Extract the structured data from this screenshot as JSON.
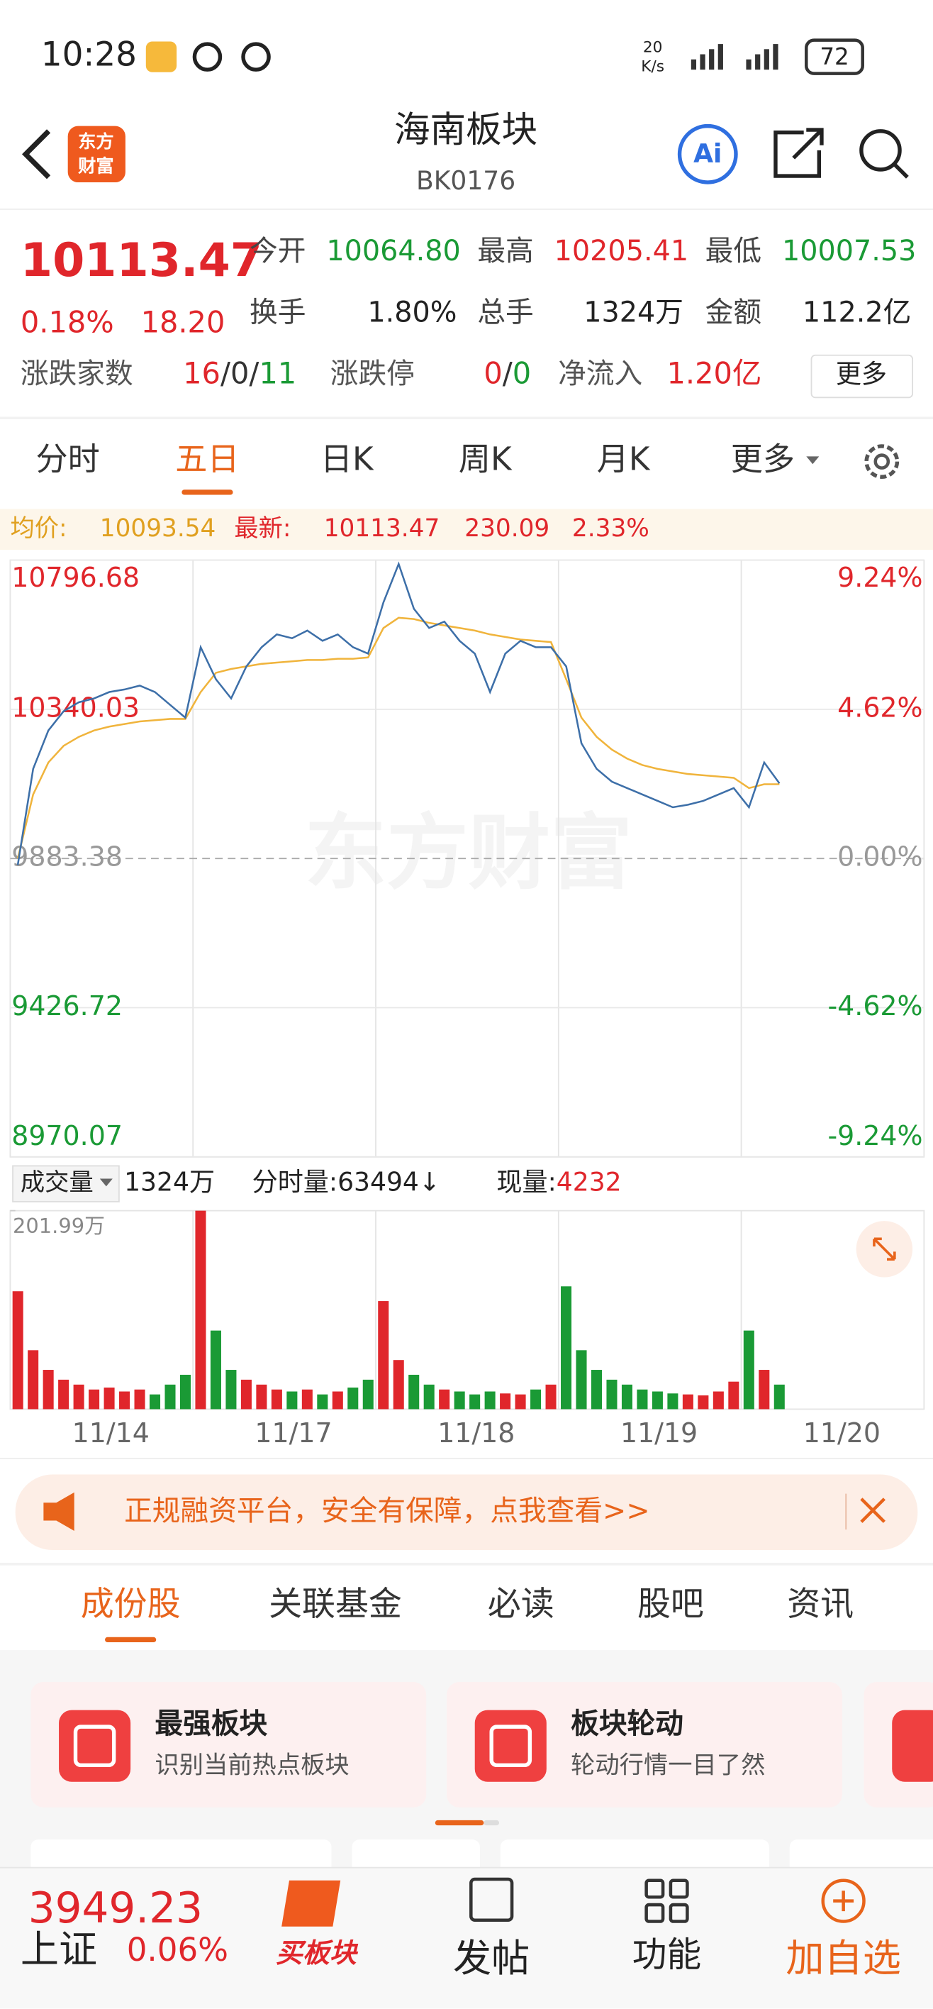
{
  "status": {
    "time": "10:28",
    "speed_value": "20",
    "speed_unit": "K/s",
    "battery": "72"
  },
  "header": {
    "logo_top": "东方",
    "logo_bottom": "财富",
    "title": "海南板块",
    "code": "BK0176",
    "ai": "Ai"
  },
  "quote": {
    "price": "10113.47",
    "pct": "0.18%",
    "change": "18.20",
    "up_color": "#e0262b",
    "down_color": "#1a9a35",
    "fields": [
      {
        "label": "今开",
        "value": "10064.80",
        "color": "#1a9a35"
      },
      {
        "label": "最高",
        "value": "10205.41",
        "color": "#e0262b"
      },
      {
        "label": "最低",
        "value": "10007.53",
        "color": "#1a9a35"
      },
      {
        "label": "换手",
        "value": "1.80%",
        "color": "#222222"
      },
      {
        "label": "总手",
        "value": "1324万",
        "color": "#222222"
      },
      {
        "label": "金额",
        "value": "112.2亿",
        "color": "#222222"
      }
    ],
    "breadth": {
      "label": "涨跌家数",
      "up": "16",
      "flat": "0",
      "down": "11",
      "sep": "/"
    },
    "limit": {
      "label": "涨跌停",
      "up": "0",
      "down": "0"
    },
    "netflow": {
      "label": "净流入",
      "value": "1.20亿"
    },
    "more": "更多"
  },
  "tabs": {
    "items": [
      "分时",
      "五日",
      "日K",
      "周K",
      "月K",
      "更多"
    ],
    "active": 1
  },
  "info": {
    "avg_label": "均价:",
    "avg": "10093.54",
    "last_label": "最新:",
    "last": "10113.47",
    "chg": "230.09",
    "chg_pct": "2.33%"
  },
  "watermark": "东方财富",
  "chart_data": {
    "type": "line",
    "ylim": [
      8970.07,
      10796.68
    ],
    "yticks": [
      10796.68,
      10340.03,
      9883.38,
      9426.72,
      8970.07
    ],
    "y2lim": [
      -9.24,
      9.24
    ],
    "y2ticks": [
      {
        "value": 9.24,
        "label": "9.24%"
      },
      {
        "value": 4.62,
        "label": "4.62%"
      },
      {
        "value": 0,
        "label": "0.00%"
      },
      {
        "value": -4.62,
        "label": "-4.62%"
      },
      {
        "value": -9.24,
        "label": "-9.24%"
      }
    ],
    "price_color": "#3d6fa8",
    "avg_color": "#f0b43c",
    "days": [
      {
        "label": "11/14",
        "price": [
          9863.7,
          10157.7,
          10275.3,
          10334.1,
          10361.6,
          10373.3,
          10392.9,
          10400.8,
          10412.5,
          10392.9,
          10353.7,
          10314.5
        ],
        "avg": [
          9883.3,
          10079.3,
          10177.3,
          10228.3,
          10255.7,
          10275.3,
          10287.1,
          10294.9,
          10302.8,
          10306.7,
          10310.6,
          10310.6
        ],
        "volume": [
          120,
          60,
          40,
          30,
          25,
          20,
          22,
          18,
          20,
          15,
          25,
          35
        ]
      },
      {
        "label": "11/17",
        "price": [
          10530.1,
          10432.1,
          10373.3,
          10471.3,
          10530.1,
          10569.3,
          10557.6,
          10581.1,
          10549.7,
          10569.3,
          10530.1,
          10510.5
        ],
        "avg": [
          10392.9,
          10451.7,
          10463.5,
          10471.3,
          10479.2,
          10483.1,
          10487.0,
          10490.9,
          10490.9,
          10494.9,
          10494.9,
          10498.8
        ],
        "volume": [
          201.99,
          80,
          40,
          30,
          25,
          20,
          18,
          20,
          15,
          18,
          22,
          30
        ]
      },
      {
        "label": "11/18",
        "price": [
          10667.3,
          10784.9,
          10647.7,
          10588.9,
          10608.5,
          10549.7,
          10510.5,
          10392.9,
          10510.5,
          10549.7,
          10530.1,
          10530.1
        ],
        "avg": [
          10588.9,
          10620.3,
          10616.4,
          10604.6,
          10596.8,
          10588.9,
          10581.1,
          10569.3,
          10561.5,
          10553.7,
          10549.7,
          10545.8
        ],
        "volume": [
          110,
          50,
          35,
          25,
          20,
          18,
          15,
          18,
          16,
          15,
          20,
          25
        ]
      },
      {
        "label": "11/19",
        "price": [
          10471.3,
          10236.1,
          10157.7,
          10118.5,
          10098.9,
          10079.3,
          10059.7,
          10040.1,
          10048.0,
          10059.7,
          10079.3,
          10098.9
        ],
        "avg": [
          10432.1,
          10314.5,
          10255.7,
          10216.5,
          10189.1,
          10169.5,
          10157.7,
          10149.9,
          10142.1,
          10138.1,
          10134.2,
          10130.3
        ],
        "volume": [
          125,
          60,
          40,
          30,
          25,
          20,
          18,
          16,
          15,
          14,
          18,
          28
        ]
      },
      {
        "label": "11/20",
        "price": [
          10040.1,
          10177.3,
          10113.5
        ],
        "avg": [
          10098.9,
          10110.7,
          10110.7
        ],
        "volume": [
          80,
          40,
          25
        ]
      }
    ],
    "volume_axis": {
      "ylim": [
        0,
        201.99
      ],
      "yticks": [
        {
          "value": 201.99,
          "label": "201.99万"
        }
      ]
    },
    "volume_header": {
      "label": "成交量",
      "total": "1324万",
      "tick_label": "分时量:",
      "tick": "63494↓",
      "now_label": "现量:",
      "now": "4232"
    }
  },
  "banner": {
    "text": "正规融资平台，安全有保障，点我查看>>"
  },
  "subtabs": {
    "items": [
      "成份股",
      "关联基金",
      "必读",
      "股吧",
      "资讯"
    ],
    "active": 0
  },
  "cards": [
    {
      "title": "最强板块",
      "subtitle": "识别当前热点板块"
    },
    {
      "title": "板块轮动",
      "subtitle": "轮动行情一目了然"
    }
  ],
  "bottom_nav": {
    "index_value": "3949.23",
    "index_name": "上证",
    "index_pct": "0.06%",
    "buy": "买板块",
    "post": "发帖",
    "func": "功能",
    "add": "加自选"
  }
}
